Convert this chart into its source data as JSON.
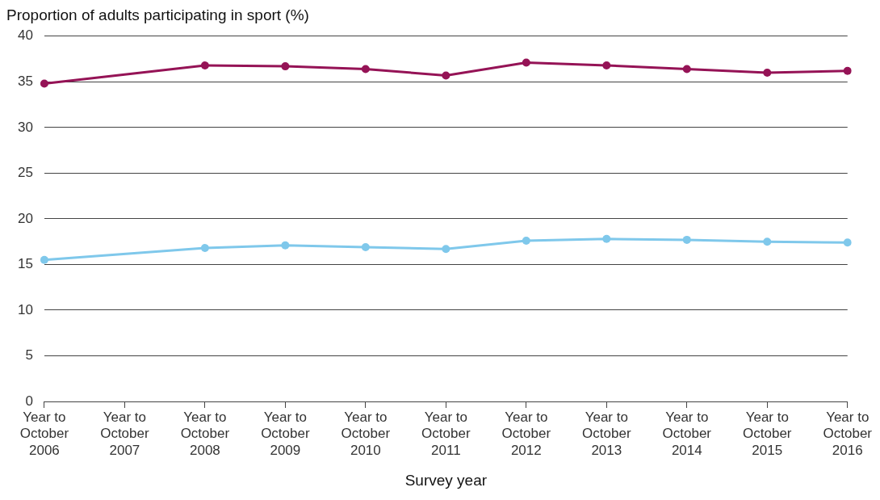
{
  "chart_data": {
    "type": "line",
    "ylabel": "Proportion of adults participating in sport (%)",
    "xlabel": "Survey year",
    "categories": [
      "Year to October 2006",
      "Year to October 2007",
      "Year to October 2008",
      "Year to October 2009",
      "Year to October 2010",
      "Year to October 2011",
      "Year to October 2012",
      "Year to October 2013",
      "Year to October 2014",
      "Year to October 2015",
      "Year to October 2016"
    ],
    "series": [
      {
        "color": "#951356",
        "values": [
          34.8,
          null,
          36.8,
          36.7,
          36.4,
          35.7,
          37.1,
          36.8,
          36.4,
          36.0,
          36.2
        ]
      },
      {
        "color": "#7fc8eb",
        "values": [
          15.5,
          null,
          16.8,
          17.1,
          16.9,
          16.7,
          17.6,
          17.8,
          17.7,
          17.5,
          17.4
        ]
      }
    ],
    "ylim": [
      0,
      40
    ],
    "yticks": [
      0,
      5,
      10,
      15,
      20,
      25,
      30,
      35,
      40
    ],
    "grid": "y",
    "marker": "circle",
    "line_style": "solid",
    "legend": false
  }
}
